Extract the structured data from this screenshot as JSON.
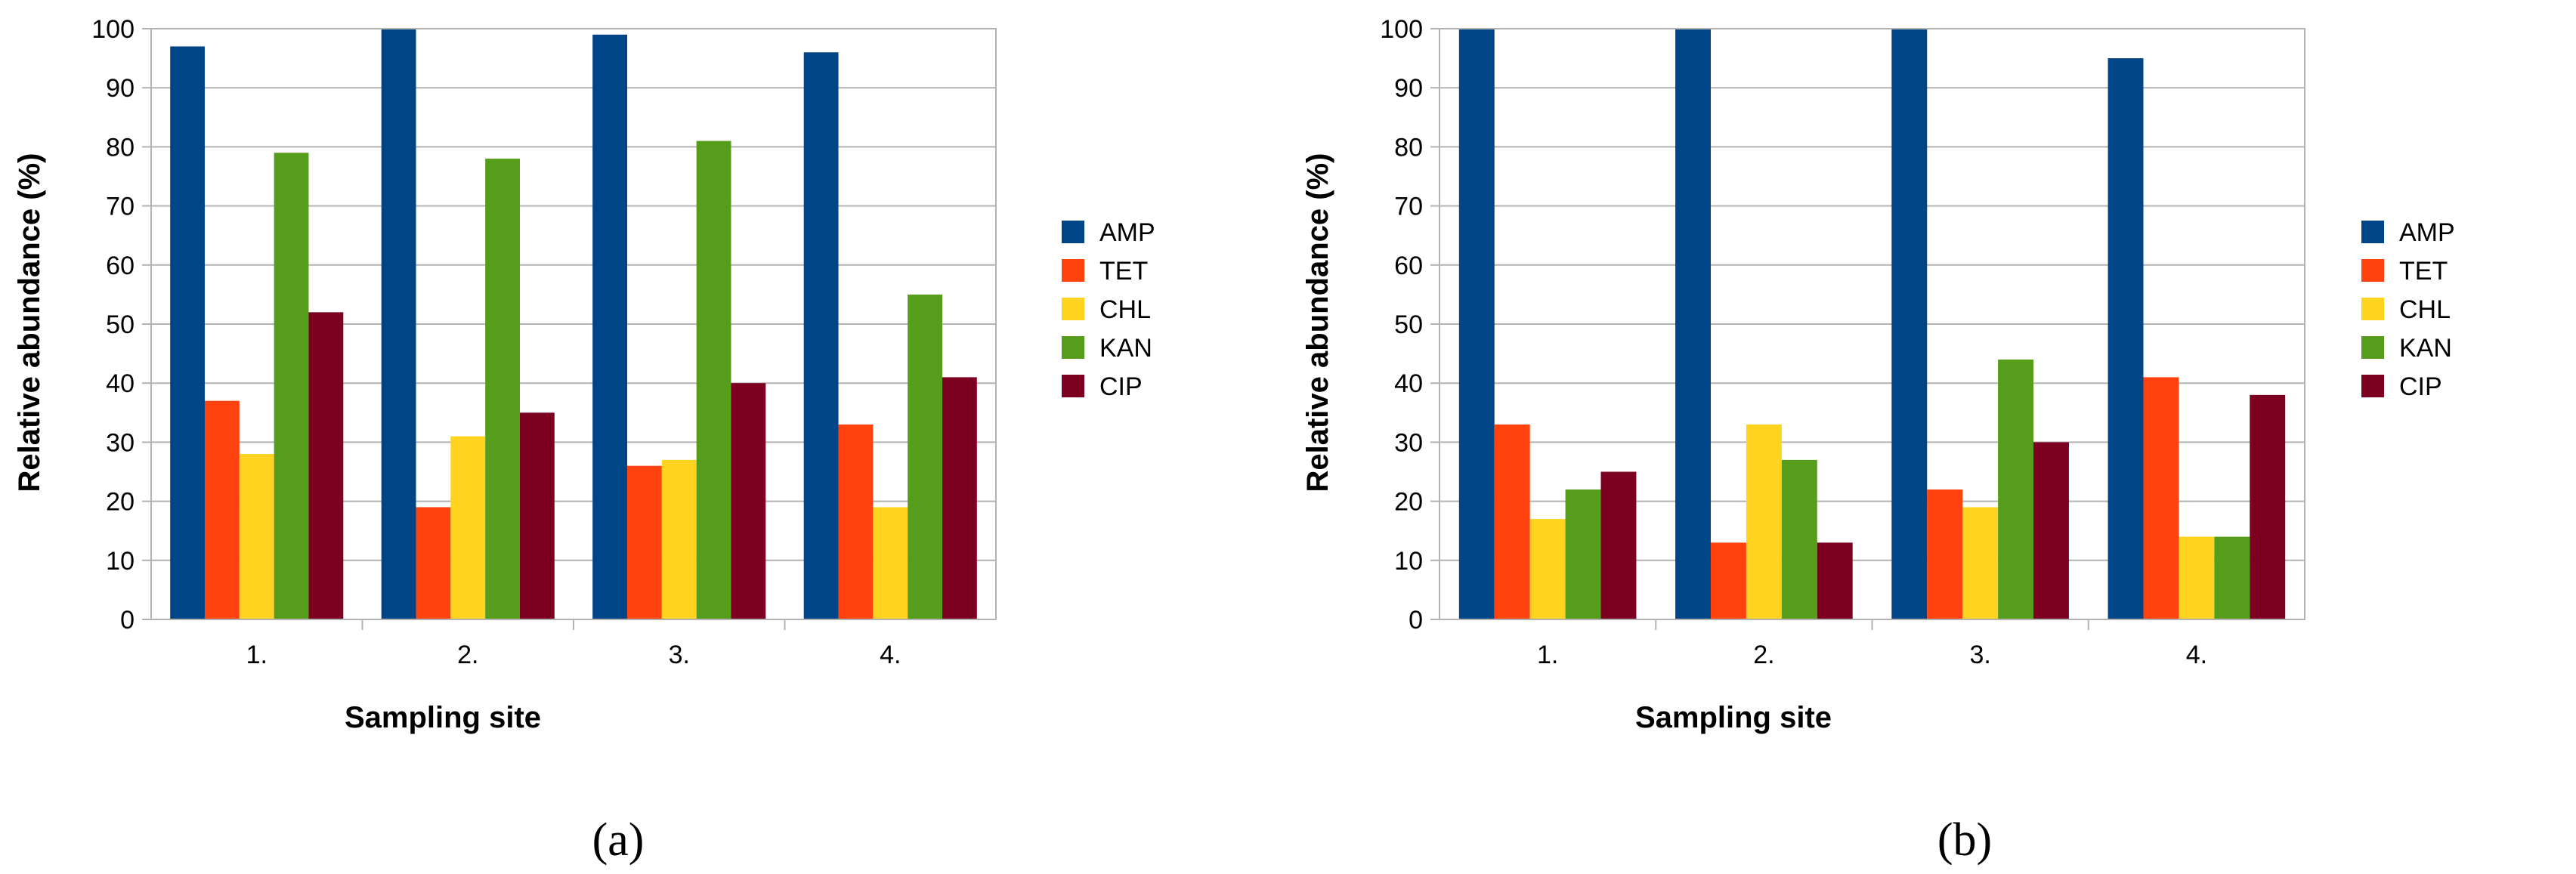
{
  "figures": [
    {
      "panel_label": "(a)",
      "chart_data": {
        "type": "bar",
        "xlabel": "Sampling site",
        "ylabel": "Relative abundance (%)",
        "ylim": [
          0,
          100
        ],
        "yticks": [
          0,
          10,
          20,
          30,
          40,
          50,
          60,
          70,
          80,
          90,
          100
        ],
        "grid": true,
        "legend_position": "right",
        "categories": [
          "1.",
          "2.",
          "3.",
          "4."
        ],
        "series": [
          {
            "name": "AMP",
            "color": "#004586",
            "values": [
              97,
              100,
              99,
              96
            ]
          },
          {
            "name": "TET",
            "color": "#FF420E",
            "values": [
              37,
              19,
              26,
              33
            ]
          },
          {
            "name": "CHL",
            "color": "#FFD320",
            "values": [
              28,
              31,
              27,
              19
            ]
          },
          {
            "name": "KAN",
            "color": "#579D1C",
            "values": [
              79,
              78,
              81,
              55
            ]
          },
          {
            "name": "CIP",
            "color": "#7E0021",
            "values": [
              52,
              35,
              40,
              41
            ]
          }
        ]
      }
    },
    {
      "panel_label": "(b)",
      "chart_data": {
        "type": "bar",
        "xlabel": "Sampling site",
        "ylabel": "Relative abundance (%)",
        "ylim": [
          0,
          100
        ],
        "yticks": [
          0,
          10,
          20,
          30,
          40,
          50,
          60,
          70,
          80,
          90,
          100
        ],
        "grid": true,
        "legend_position": "right",
        "categories": [
          "1.",
          "2.",
          "3.",
          "4."
        ],
        "series": [
          {
            "name": "AMP",
            "color": "#004586",
            "values": [
              100,
              100,
              100,
              95
            ]
          },
          {
            "name": "TET",
            "color": "#FF420E",
            "values": [
              33,
              13,
              22,
              41
            ]
          },
          {
            "name": "CHL",
            "color": "#FFD320",
            "values": [
              17,
              33,
              19,
              14
            ]
          },
          {
            "name": "KAN",
            "color": "#579D1C",
            "values": [
              22,
              27,
              44,
              14
            ]
          },
          {
            "name": "CIP",
            "color": "#7E0021",
            "values": [
              25,
              13,
              30,
              38
            ]
          }
        ]
      }
    }
  ]
}
